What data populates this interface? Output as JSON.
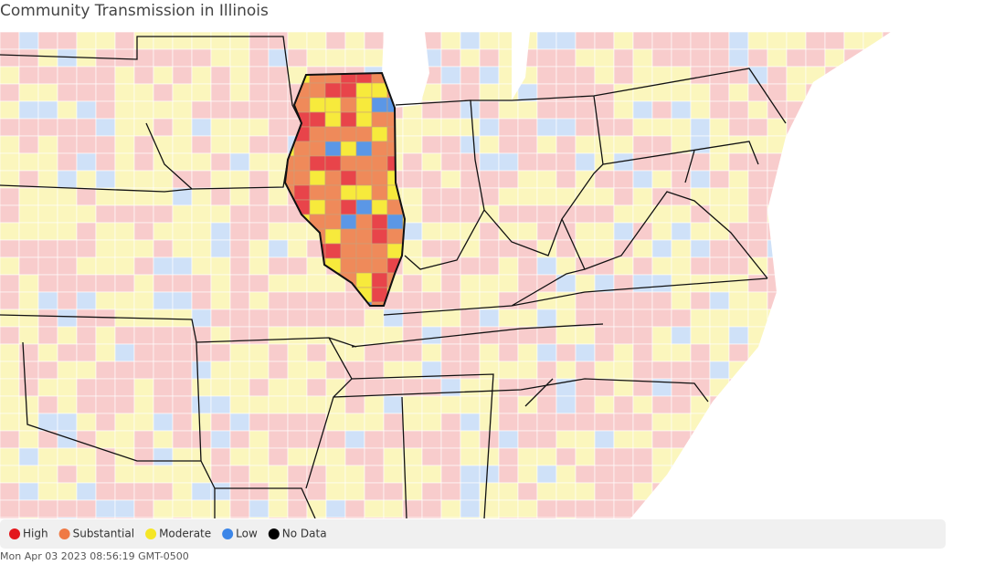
{
  "header": {
    "title": "Community Transmission in Illinois"
  },
  "legend": {
    "items": [
      {
        "label": "High",
        "color": "#e3171c"
      },
      {
        "label": "Substantial",
        "color": "#ef7a45"
      },
      {
        "label": "Moderate",
        "color": "#f5e626"
      },
      {
        "label": "Low",
        "color": "#3c86e8"
      },
      {
        "label": "No Data",
        "color": "#000000"
      }
    ]
  },
  "footer": {
    "timestamp": "Mon Apr 03 2023 08:56:19 GMT-0500"
  }
}
